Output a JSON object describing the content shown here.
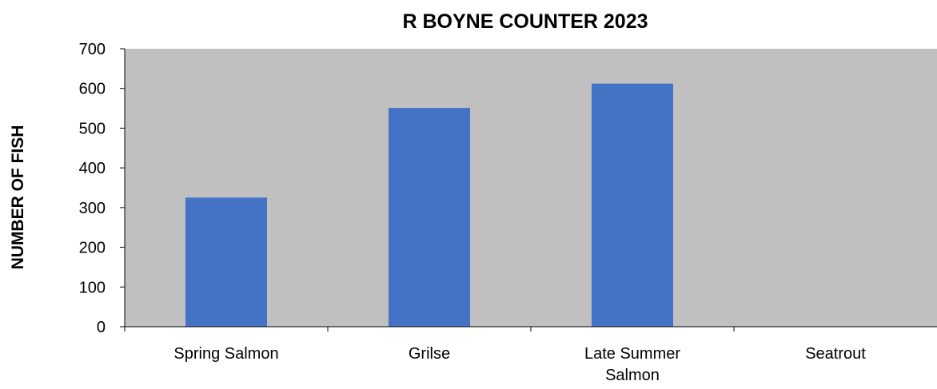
{
  "chart_data": {
    "type": "bar",
    "title": "R BOYNE COUNTER 2023",
    "xlabel": "",
    "ylabel": "NUMBER OF FISH",
    "categories": [
      [
        "Spring Salmon"
      ],
      [
        "Grilse"
      ],
      [
        "Late Summer",
        "Salmon"
      ],
      [
        "Seatrout"
      ]
    ],
    "values": [
      325,
      551,
      612,
      0
    ],
    "ylim": [
      0,
      700
    ],
    "yticks": [
      0,
      100,
      200,
      300,
      400,
      500,
      600,
      700
    ],
    "grid": false,
    "legend": "none",
    "colors": {
      "bar": "#4472C4",
      "plot_background": "#C0C0C0",
      "axis": "#000000"
    }
  }
}
